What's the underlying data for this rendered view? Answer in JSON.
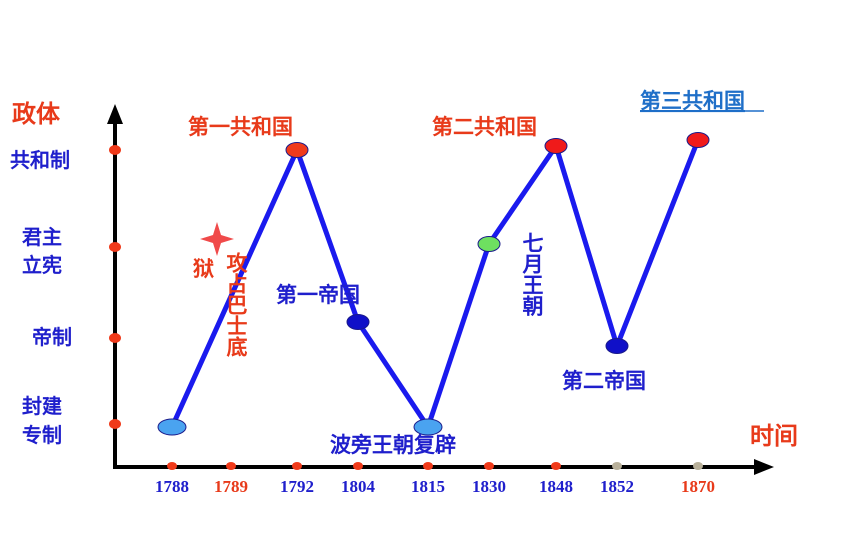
{
  "axes": {
    "y_title": "政体",
    "x_title": "时间",
    "y_levels": [
      {
        "label": "共和制",
        "color": "#1f1fcc"
      },
      {
        "label": "君主立宪",
        "line1": "君主",
        "line2": "立宪",
        "color": "#1f1fcc"
      },
      {
        "label": "帝制",
        "color": "#1f1fcc"
      },
      {
        "label": "封建专制",
        "line1": "封建",
        "line2": "专制",
        "color": "#1f1fcc"
      }
    ],
    "x_years": [
      {
        "label": "1788",
        "color": "#1f1fcc"
      },
      {
        "label": "1789",
        "color": "#e83a1a"
      },
      {
        "label": "1792",
        "color": "#1f1fcc"
      },
      {
        "label": "1804",
        "color": "#1f1fcc"
      },
      {
        "label": "1815",
        "color": "#1f1fcc"
      },
      {
        "label": "1830",
        "color": "#1f1fcc"
      },
      {
        "label": "1848",
        "color": "#1f1fcc"
      },
      {
        "label": "1852",
        "color": "#1f1fcc"
      },
      {
        "label": "1870",
        "color": "#e83a1a"
      }
    ]
  },
  "points": [
    {
      "year": 1788,
      "level": "封建专制",
      "color": "#4aa3f0"
    },
    {
      "year": 1792,
      "level": "共和制",
      "color": "#f03a1a"
    },
    {
      "year": 1804,
      "level": "帝制",
      "color": "#1010c8"
    },
    {
      "year": 1815,
      "level": "封建专制",
      "color": "#4aa3f0"
    },
    {
      "year": 1830,
      "level": "君主立宪",
      "color": "#6ee060"
    },
    {
      "year": 1848,
      "level": "共和制",
      "color": "#f01a1a"
    },
    {
      "year": 1852,
      "level": "帝制",
      "color": "#1010c8"
    },
    {
      "year": 1870,
      "level": "共和制",
      "color": "#f01a1a"
    }
  ],
  "events": {
    "first_republic": "第一共和国",
    "second_republic": "第二共和国",
    "third_republic": "第三共和国",
    "first_empire": "第一帝国",
    "second_empire": "第二帝国",
    "bourbon_restoration": "波旁王朝复辟",
    "july_monarchy": "七月王朝",
    "bastille": "攻占巴士底狱"
  },
  "colors": {
    "line": "#1a1aee",
    "axis": "#000000",
    "red_text": "#e83a1a",
    "blue_text": "#1f1fcc",
    "link_blue": "#1f6fc8",
    "star": "#f04a4a"
  }
}
